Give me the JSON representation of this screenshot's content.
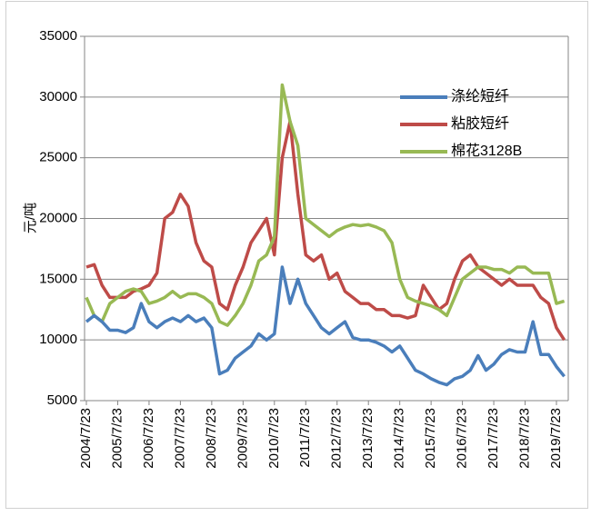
{
  "chart_data": {
    "type": "line",
    "ylabel": "元/吨",
    "categories": [
      "2004/7/23",
      null,
      null,
      null,
      "2005/7/23",
      null,
      null,
      null,
      "2006/7/23",
      null,
      null,
      null,
      "2007/7/23",
      null,
      null,
      null,
      "2008/7/23",
      null,
      null,
      null,
      "2009/7/23",
      null,
      null,
      null,
      "2010/7/23",
      null,
      null,
      null,
      "2011/7/23",
      null,
      null,
      null,
      "2012/7/23",
      null,
      null,
      null,
      "2013/7/23",
      null,
      null,
      null,
      "2014/7/23",
      null,
      null,
      null,
      "2015/7/23",
      null,
      null,
      null,
      "2016/7/23",
      null,
      null,
      null,
      "2017/7/23",
      null,
      null,
      null,
      "2018/7/23",
      null,
      null,
      null,
      "2019/7/23",
      null
    ],
    "series": [
      {
        "name": "涤纶短纤",
        "color": "#4a7ebb",
        "values": [
          11500,
          12000,
          11500,
          10800,
          10800,
          10600,
          11000,
          13000,
          11500,
          11000,
          11500,
          11800,
          11500,
          12000,
          11500,
          11800,
          11000,
          7200,
          7500,
          8500,
          9000,
          9500,
          10500,
          10000,
          10500,
          16000,
          13000,
          15000,
          13000,
          12000,
          11000,
          10500,
          11000,
          11500,
          10200,
          10000,
          10000,
          9800,
          9500,
          9000,
          9500,
          8500,
          7500,
          7200,
          6800,
          6500,
          6300,
          6800,
          7000,
          7500,
          8700,
          7500,
          8000,
          8800,
          9200,
          9000,
          9000,
          11500,
          8800,
          8800,
          7800,
          7000
        ]
      },
      {
        "name": "粘胶短纤",
        "color": "#be4b48",
        "values": [
          16000,
          16200,
          14500,
          13500,
          13500,
          13500,
          14000,
          14200,
          14500,
          15500,
          20000,
          20500,
          22000,
          21000,
          18000,
          16500,
          16000,
          13000,
          12500,
          14500,
          16000,
          18000,
          19000,
          20000,
          17000,
          25000,
          28000,
          22000,
          17000,
          16500,
          17000,
          15000,
          15500,
          14000,
          13500,
          13000,
          13000,
          12500,
          12500,
          12000,
          12000,
          11800,
          12000,
          14500,
          13500,
          12500,
          13000,
          15000,
          16500,
          17000,
          16000,
          15500,
          15000,
          14500,
          15000,
          14500,
          14500,
          14500,
          13500,
          13000,
          11000,
          10000
        ]
      },
      {
        "name": "棉花3128B",
        "color": "#98b954",
        "values": [
          13500,
          12000,
          11500,
          13000,
          13500,
          14000,
          14200,
          14000,
          13000,
          13200,
          13500,
          14000,
          13500,
          13800,
          13800,
          13500,
          13000,
          11500,
          11200,
          12000,
          13000,
          14500,
          16500,
          17000,
          18500,
          31000,
          28000,
          26000,
          20000,
          19500,
          19000,
          18500,
          19000,
          19300,
          19500,
          19400,
          19500,
          19300,
          19000,
          18000,
          15000,
          13500,
          13200,
          13000,
          12800,
          12500,
          12000,
          13500,
          15000,
          15500,
          16000,
          16000,
          15800,
          15800,
          15500,
          16000,
          16000,
          15500,
          15500,
          15500,
          13000,
          13200
        ]
      }
    ],
    "ylim": [
      5000,
      35000
    ],
    "yticks": [
      5000,
      10000,
      15000,
      20000,
      25000,
      30000,
      35000
    ],
    "grid": true,
    "legend": "upper right"
  }
}
